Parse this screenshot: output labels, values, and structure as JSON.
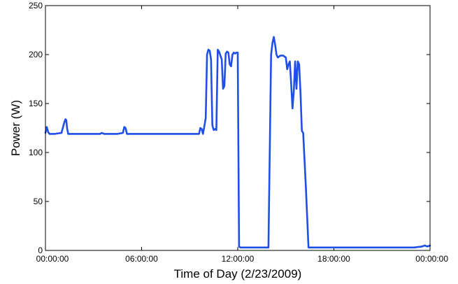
{
  "chart_data": {
    "type": "line",
    "title": "",
    "xlabel": "Time of Day (2/23/2009)",
    "ylabel": "Power (W)",
    "xlim": [
      "00:00:00",
      "24:00:00"
    ],
    "ylim": [
      0,
      250
    ],
    "grid": false,
    "legend": "none",
    "line_color": "#1f4fe6",
    "x_ticks": [
      "00:00:00",
      "06:00:00",
      "12:00:00",
      "18:00:00",
      "00:00:00"
    ],
    "y_ticks": [
      "0",
      "50",
      "100",
      "150",
      "200",
      "250"
    ],
    "series": [
      {
        "x": [
          "00:00:00",
          "00:05:00",
          "00:10:00",
          "00:15:00",
          "00:20:00",
          "00:25:00",
          "00:35:00",
          "01:00:00",
          "01:10:00",
          "01:15:00",
          "01:18:00",
          "01:21:00",
          "01:25:00",
          "01:35:00",
          "02:00:00",
          "02:30:00",
          "03:00:00",
          "03:25:00",
          "03:30:00",
          "03:40:00",
          "04:00:00",
          "04:30:00",
          "04:50:00",
          "04:55:00",
          "05:00:00",
          "05:05:00",
          "05:15:00",
          "06:00:00",
          "07:00:00",
          "08:00:00",
          "09:00:00",
          "09:35:00",
          "09:40:00",
          "09:45:00",
          "09:50:00",
          "10:00:00",
          "10:05:00",
          "10:10:00",
          "10:15:00",
          "10:20:00",
          "10:25:00",
          "10:30:00",
          "10:35:00",
          "10:40:00",
          "10:45:00",
          "10:50:00",
          "11:00:00",
          "11:05:00",
          "11:10:00",
          "11:15:00",
          "11:20:00",
          "11:25:00",
          "11:30:00",
          "11:35:00",
          "11:40:00",
          "11:45:00",
          "11:50:00",
          "11:55:00",
          "12:00:00",
          "12:05:00",
          "12:10:00",
          "12:20:00",
          "12:25:00",
          "12:30:00",
          "12:35:00",
          "13:00:00",
          "13:30:00",
          "13:55:00",
          "14:05:00",
          "14:10:00",
          "14:15:00",
          "14:20:00",
          "14:25:00",
          "14:30:00",
          "14:40:00",
          "14:50:00",
          "15:00:00",
          "15:05:00",
          "15:10:00",
          "15:15:00",
          "15:20:00",
          "15:25:00",
          "15:30:00",
          "15:35:00",
          "15:40:00",
          "15:45:00",
          "15:50:00",
          "15:55:00",
          "16:00:00",
          "16:05:00",
          "16:15:00",
          "16:25:00",
          "16:35:00",
          "17:00:00",
          "18:00:00",
          "20:00:00",
          "22:00:00",
          "23:00:00",
          "23:30:00",
          "23:40:00",
          "23:50:00",
          "24:00:00"
        ],
        "y": [
          120,
          126,
          121,
          119,
          119,
          119,
          119,
          120,
          130,
          134,
          133,
          125,
          119,
          119,
          119,
          119,
          119,
          119,
          120,
          119,
          119,
          119,
          120,
          126,
          125,
          119,
          119,
          119,
          119,
          119,
          119,
          119,
          125,
          124,
          119,
          135,
          200,
          205,
          204,
          195,
          128,
          123,
          124,
          123,
          205,
          203,
          195,
          165,
          168,
          201,
          203,
          202,
          190,
          188,
          200,
          202,
          201,
          202,
          202,
          4,
          3,
          3,
          3,
          3,
          3,
          3,
          3,
          3,
          200,
          212,
          218,
          210,
          200,
          197,
          199,
          199,
          197,
          185,
          190,
          193,
          170,
          145,
          163,
          193,
          165,
          193,
          190,
          160,
          122,
          120,
          65,
          3,
          3,
          3,
          3,
          3,
          3,
          3,
          4,
          5,
          4,
          5
        ]
      }
    ]
  }
}
